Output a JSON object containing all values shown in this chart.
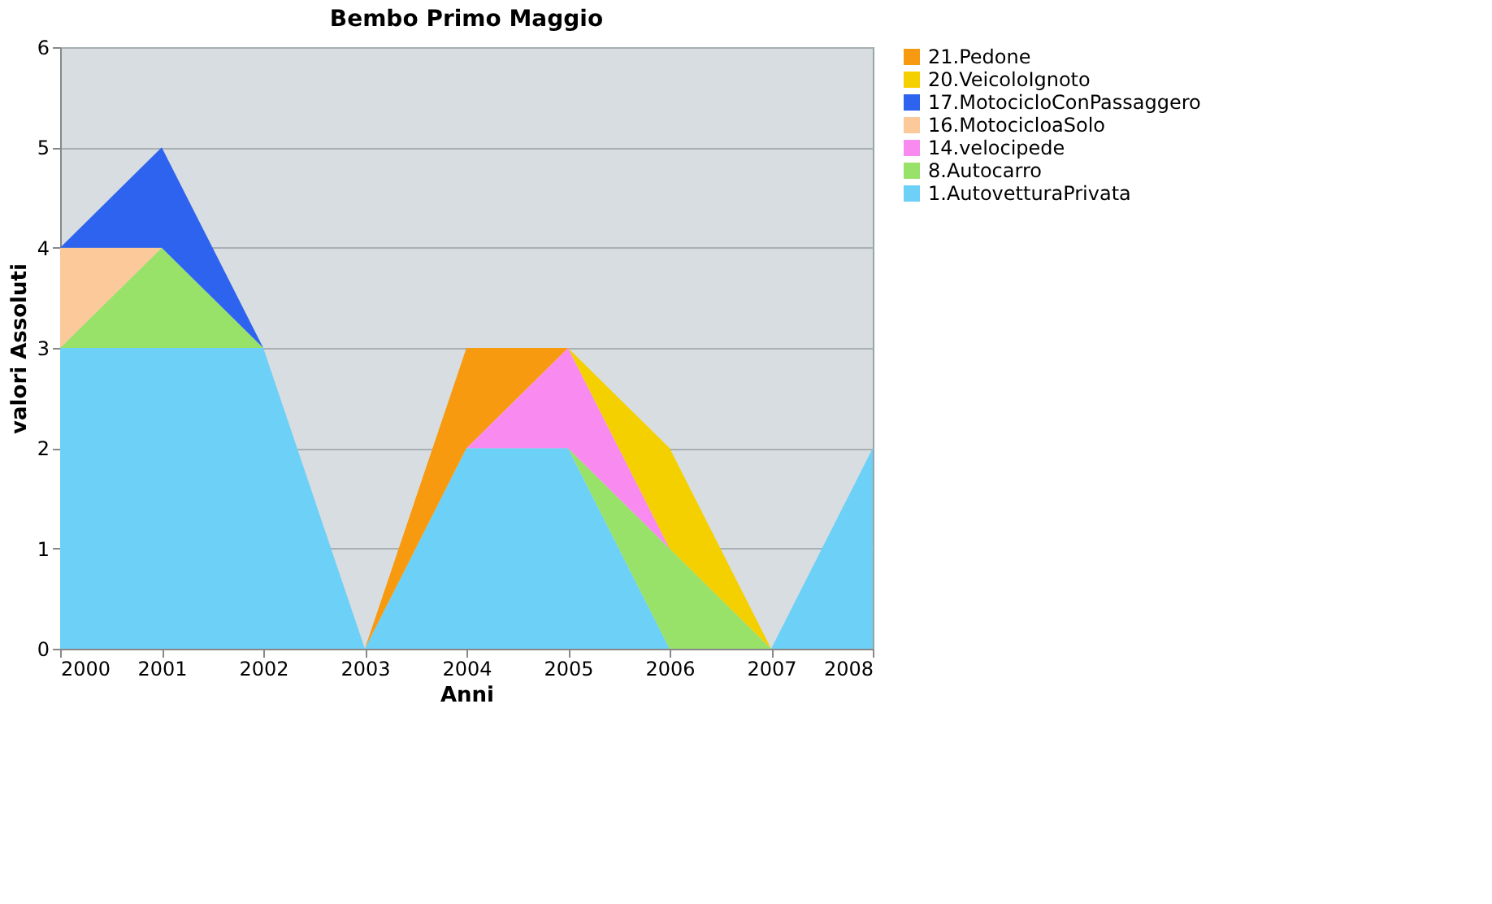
{
  "chart_data": {
    "type": "area",
    "title": "Bembo Primo Maggio",
    "xlabel": "Anni",
    "ylabel": "valori Assoluti",
    "stacked": true,
    "x": [
      2000,
      2001,
      2002,
      2003,
      2004,
      2005,
      2006,
      2007,
      2008
    ],
    "series": [
      {
        "name": "1.AutovetturaPrivata",
        "color": "#6dd0f7",
        "values": [
          3,
          3,
          3,
          0,
          2,
          2,
          0,
          0,
          2
        ]
      },
      {
        "name": "8.Autocarro",
        "color": "#99e26a",
        "values": [
          0,
          1,
          0,
          null,
          null,
          0,
          1,
          0,
          null
        ]
      },
      {
        "name": "14.velocipede",
        "color": "#f98bf0",
        "values": [
          null,
          null,
          null,
          null,
          0,
          1,
          0,
          null,
          null
        ]
      },
      {
        "name": "16.MotocicloaSolo",
        "color": "#fcc99a",
        "values": [
          1,
          0,
          null,
          null,
          null,
          null,
          null,
          null,
          null
        ]
      },
      {
        "name": "17.MotocicloConPassaggero",
        "color": "#2e63f0",
        "values": [
          0,
          1,
          0,
          null,
          null,
          null,
          null,
          null,
          null
        ]
      },
      {
        "name": "20.VeicoloIgnoto",
        "color": "#f5d000",
        "values": [
          null,
          null,
          null,
          null,
          null,
          0,
          1,
          0,
          null
        ]
      },
      {
        "name": "21.Pedone",
        "color": "#f79a10",
        "values": [
          null,
          null,
          null,
          0,
          1,
          0,
          null,
          null,
          null
        ]
      }
    ],
    "xlim": [
      2000,
      2008
    ],
    "xticks": [
      2000,
      2001,
      2002,
      2003,
      2004,
      2005,
      2006,
      2007,
      2008
    ],
    "ylim": [
      0,
      6
    ],
    "yticks": [
      0,
      1,
      2,
      3,
      4,
      5,
      6
    ],
    "grid": "y",
    "legend": "right"
  }
}
